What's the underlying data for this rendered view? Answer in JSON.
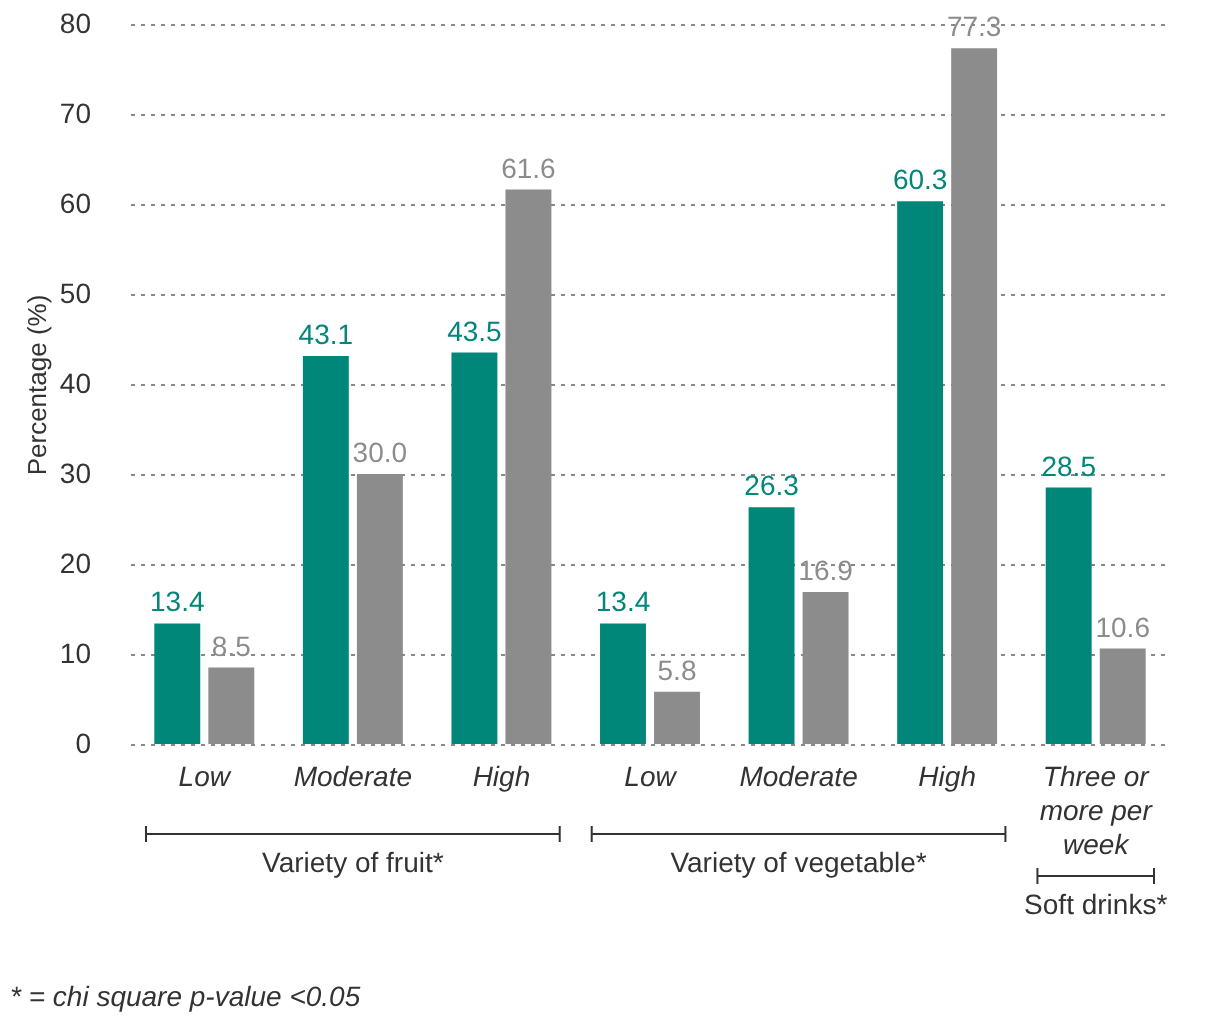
{
  "chart_data": {
    "type": "bar",
    "categories": [
      "Low",
      "Moderate",
      "High",
      "Low",
      "Moderate",
      "High",
      "Three or more per week"
    ],
    "series": [
      {
        "color": "#00877a",
        "values": [
          13.4,
          43.1,
          43.5,
          13.4,
          26.3,
          60.3,
          28.5
        ],
        "value_labels": [
          "13.4",
          "43.1",
          "43.5",
          "13.4",
          "26.3",
          "60.3",
          "28.5"
        ]
      },
      {
        "color": "#8c8c8c",
        "values": [
          8.5,
          30.0,
          61.6,
          5.8,
          16.9,
          77.3,
          10.6
        ],
        "value_labels": [
          "8.5",
          "30.0",
          "61.6",
          "5.8",
          "16.9",
          "77.3",
          "10.6"
        ]
      }
    ],
    "ylabel": "Percentage (%)",
    "ylim": [
      0,
      80
    ],
    "yticks": [
      0,
      10,
      20,
      30,
      40,
      50,
      60,
      70,
      80
    ],
    "grid": "y",
    "annotations": [
      "Variety of fruit*",
      "Variety of vegetable*",
      "Soft drinks*",
      "* = chi square p-value <0.05"
    ]
  }
}
